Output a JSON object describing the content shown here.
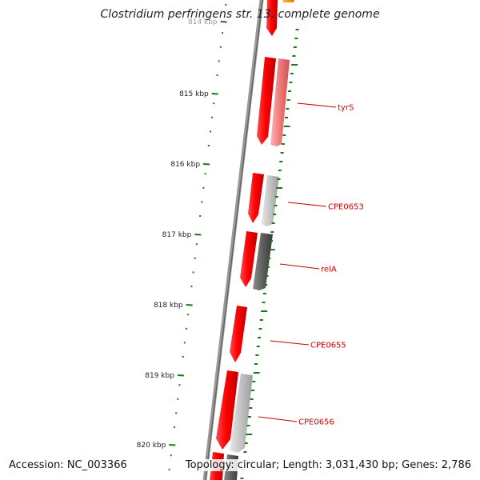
{
  "title": "Clostridium perfringens str. 13, complete genome",
  "footer": {
    "accession": "Accession: NC_003366",
    "stats": "Topology: circular; Length: 3,031,430 bp; Genes: 2,786"
  },
  "ruler": {
    "labels": [
      "814 kbp",
      "815 kbp",
      "816 kbp",
      "817 kbp",
      "818 kbp",
      "819 kbp",
      "820 kbp"
    ]
  },
  "genes": [
    {
      "name": "tyrS"
    },
    {
      "name": "CPE0653"
    },
    {
      "name": "relA"
    },
    {
      "name": "CPE0655"
    },
    {
      "name": "CPE0656"
    }
  ],
  "colors": {
    "gene_red": "#ff0000",
    "tick_green": "#1a7a1a",
    "backbone": "#777777",
    "label_red": "#cc0000"
  }
}
